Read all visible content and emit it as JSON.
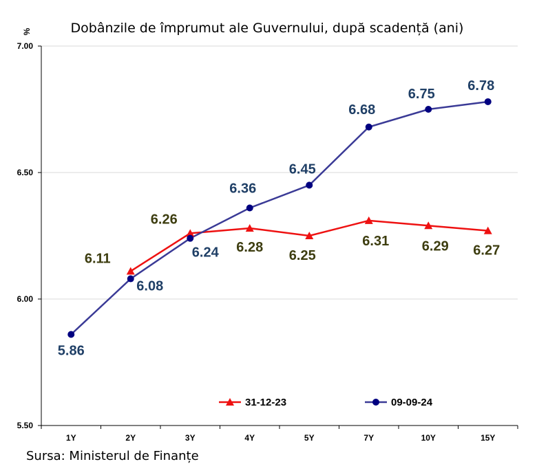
{
  "chart_data": {
    "type": "line",
    "title": "Dobânzile de împrumut ale Guvernului, după scadență (ani)",
    "ylabel": "%",
    "ylim": [
      5.5,
      7.0
    ],
    "yticks": [
      "5.50",
      "6.00",
      "6.50",
      "7.00"
    ],
    "categories": [
      "1Y",
      "2Y",
      "3Y",
      "4Y",
      "5Y",
      "7Y",
      "10Y",
      "15Y"
    ],
    "series": [
      {
        "name": "31-12-23",
        "color": "#ee1111",
        "marker": "triangle",
        "values": [
          null,
          6.11,
          6.26,
          6.28,
          6.25,
          6.31,
          6.29,
          6.27
        ],
        "labels": [
          "",
          "6.11",
          "6.26",
          "6.28",
          "6.25",
          "6.31",
          "6.29",
          "6.27"
        ]
      },
      {
        "name": "09-09-24",
        "color": "#000080",
        "line_color": "#3a3a96",
        "marker": "circle",
        "values": [
          5.86,
          6.08,
          6.24,
          6.36,
          6.45,
          6.68,
          6.75,
          6.78
        ],
        "labels": [
          "5.86",
          "6.08",
          "6.24",
          "6.36",
          "6.45",
          "6.68",
          "6.75",
          "6.78"
        ]
      }
    ],
    "grid": "horizontal",
    "legend": "bottom",
    "source": "Sursa: Ministerul de Finanțe"
  }
}
